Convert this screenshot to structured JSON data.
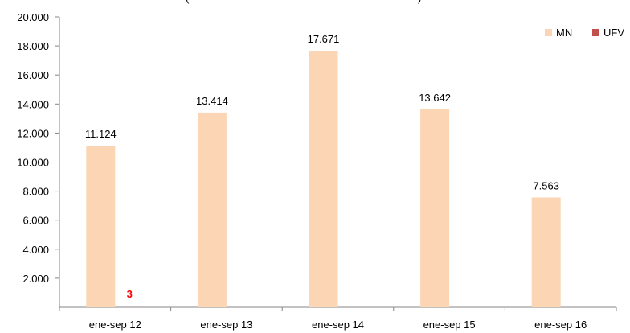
{
  "chart_data": {
    "type": "bar",
    "title_fragments": {
      "left": "(",
      "right": ")"
    },
    "categories": [
      "ene-sep 12",
      "ene-sep 13",
      "ene-sep 14",
      "ene-sep 15",
      "ene-sep 16"
    ],
    "series": [
      {
        "name": "MN",
        "color": "#fcd5b4",
        "label_color": "#000000",
        "values": [
          11124,
          13414,
          17671,
          13642,
          7563
        ],
        "labels": [
          "11.124",
          "13.414",
          "17.671",
          "13.642",
          "7.563"
        ]
      },
      {
        "name": "UFV",
        "color": "#c0504d",
        "label_color": "#ff0000",
        "values": [
          3,
          0,
          0,
          0,
          0
        ],
        "labels": [
          "3",
          "",
          "",
          "",
          ""
        ]
      }
    ],
    "y_ticks": [
      {
        "value": 20000,
        "label": "20.000"
      },
      {
        "value": 18000,
        "label": "18.000"
      },
      {
        "value": 16000,
        "label": "16.000"
      },
      {
        "value": 14000,
        "label": "14.000"
      },
      {
        "value": 12000,
        "label": "12.000"
      },
      {
        "value": 10000,
        "label": "10.000"
      },
      {
        "value": 8000,
        "label": "8.000"
      },
      {
        "value": 6000,
        "label": "6.000"
      },
      {
        "value": 4000,
        "label": "4.000"
      },
      {
        "value": 2000,
        "label": "2.000"
      }
    ],
    "ylim": [
      0,
      20000
    ],
    "grid": false,
    "legend": "top-right"
  }
}
